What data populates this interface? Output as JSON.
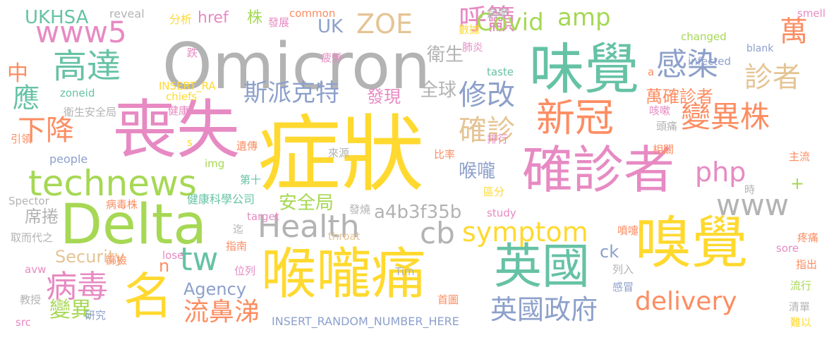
{
  "words": [
    {
      "text": "症狀",
      "color": "#ffd92f"
    },
    {
      "text": "Omicron",
      "color": "#b3b3b3"
    },
    {
      "text": "喪失",
      "color": "#e78ac3"
    },
    {
      "text": "Delta",
      "color": "#a6d854"
    },
    {
      "text": "味覺",
      "color": "#66c2a5"
    },
    {
      "text": "確診者",
      "color": "#e78ac3"
    },
    {
      "text": "嗅覺",
      "color": "#ffd92f"
    },
    {
      "text": "喉嚨痛",
      "color": "#ffd92f"
    },
    {
      "text": "名",
      "color": "#ffd92f"
    },
    {
      "text": "英國",
      "color": "#66c2a5"
    },
    {
      "text": "新冠",
      "color": "#fc8d62"
    },
    {
      "text": "technews",
      "color": "#a6d854"
    },
    {
      "text": "www5",
      "color": "#e78ac3"
    },
    {
      "text": "高達",
      "color": "#66c2a5"
    },
    {
      "text": "感染",
      "color": "#8da0cb"
    },
    {
      "text": "變異株",
      "color": "#fc8d62"
    },
    {
      "text": "Health",
      "color": "#b3b3b3"
    },
    {
      "text": "www",
      "color": "#b3b3b3"
    },
    {
      "text": "cb",
      "color": "#b3b3b3"
    },
    {
      "text": "symptom",
      "color": "#ffd92f"
    },
    {
      "text": "delivery",
      "color": "#fc8d62"
    },
    {
      "text": "英國政府",
      "color": "#8da0cb"
    },
    {
      "text": "病毒",
      "color": "#e78ac3"
    },
    {
      "text": "ZOE",
      "color": "#e5c494"
    },
    {
      "text": "amp",
      "color": "#a6d854"
    },
    {
      "text": "呼籲",
      "color": "#e78ac3"
    },
    {
      "text": "Covid",
      "color": "#a6d854"
    },
    {
      "text": "萬",
      "color": "#fc8d62"
    },
    {
      "text": "診者",
      "color": "#e5c494"
    },
    {
      "text": "php",
      "color": "#e78ac3"
    },
    {
      "text": "tw",
      "color": "#66c2a5"
    },
    {
      "text": "下降",
      "color": "#fc8d62"
    },
    {
      "text": "修改",
      "color": "#8da0cb"
    },
    {
      "text": "斯派克特",
      "color": "#8da0cb"
    },
    {
      "text": "確診",
      "color": "#e5c494"
    },
    {
      "text": "應",
      "color": "#66c2a5"
    },
    {
      "text": "流鼻涕",
      "color": "#fc8d62"
    },
    {
      "text": "變異",
      "color": "#a6d854"
    },
    {
      "text": "Agency",
      "color": "#8da0cb"
    },
    {
      "text": "a4b3f35b",
      "color": "#b3b3b3"
    },
    {
      "text": "安全局",
      "color": "#a6d854"
    },
    {
      "text": "Security",
      "color": "#e5c494"
    },
    {
      "text": "UKHSA",
      "color": "#66c2a5"
    },
    {
      "text": "中",
      "color": "#fc8d62"
    },
    {
      "text": "全球",
      "color": "#b3b3b3"
    },
    {
      "text": "衛生",
      "color": "#b3b3b3"
    },
    {
      "text": "萬確診者",
      "color": "#fc8d62"
    },
    {
      "text": "UK",
      "color": "#8da0cb"
    },
    {
      "text": "href",
      "color": "#e78ac3"
    },
    {
      "text": "株",
      "color": "#a6d854"
    },
    {
      "text": "發現",
      "color": "#e78ac3"
    },
    {
      "text": "喉嚨",
      "color": "#8da0cb"
    },
    {
      "text": "席捲",
      "color": "#b3b3b3"
    },
    {
      "text": "ck",
      "color": "#8da0cb"
    },
    {
      "text": "n",
      "color": "#fc8d62"
    },
    {
      "text": "people",
      "color": "#8da0cb"
    },
    {
      "text": "INSERT_RANDOM_NUMBER_HERE",
      "color": "#8da0cb"
    },
    {
      "text": "健康科學公司",
      "color": "#66c2a5"
    },
    {
      "text": "reveal",
      "color": "#b3b3b3"
    },
    {
      "text": "分析",
      "color": "#ffd92f"
    },
    {
      "text": "發展",
      "color": "#e78ac3"
    },
    {
      "text": "common",
      "color": "#fc8d62"
    },
    {
      "text": "病學",
      "color": "#b3b3b3"
    },
    {
      "text": "數據",
      "color": "#ffd92f"
    },
    {
      "text": "肺炎",
      "color": "#e78ac3"
    },
    {
      "text": "疲勞",
      "color": "#e78ac3"
    },
    {
      "text": "跌",
      "color": "#e78ac3"
    },
    {
      "text": "INSERT_RA",
      "color": "#ffd92f"
    },
    {
      "text": "chiefs",
      "color": "#ffd92f"
    },
    {
      "text": "zoneid",
      "color": "#66c2a5"
    },
    {
      "text": "衛生安全局",
      "color": "#b3b3b3"
    },
    {
      "text": "健康",
      "color": "#e78ac3"
    },
    {
      "text": "引領",
      "color": "#fc8d62"
    },
    {
      "text": "s",
      "color": "#ffd92f"
    },
    {
      "text": "遺傳",
      "color": "#fc8d62"
    },
    {
      "text": "img",
      "color": "#a6d854"
    },
    {
      "text": "來源",
      "color": "#b3b3b3"
    },
    {
      "text": "比率",
      "color": "#fc8d62"
    },
    {
      "text": "排行",
      "color": "#e78ac3"
    },
    {
      "text": "區分",
      "color": "#ffd92f"
    },
    {
      "text": "第十",
      "color": "#66c2a5"
    },
    {
      "text": "發燒",
      "color": "#b3b3b3"
    },
    {
      "text": "病毒株",
      "color": "#fc8d62"
    },
    {
      "text": "Spector",
      "color": "#b3b3b3"
    },
    {
      "text": "target",
      "color": "#e78ac3"
    },
    {
      "text": "study",
      "color": "#e78ac3"
    },
    {
      "text": "throat",
      "color": "#e5c494"
    },
    {
      "text": "迄",
      "color": "#b3b3b3"
    },
    {
      "text": "取而代之",
      "color": "#b3b3b3"
    },
    {
      "text": "指南",
      "color": "#fc8d62"
    },
    {
      "text": "篩檢",
      "color": "#fc8d62"
    },
    {
      "text": "lose",
      "color": "#e78ac3"
    },
    {
      "text": "avw",
      "color": "#e78ac3"
    },
    {
      "text": "位列",
      "color": "#e78ac3"
    },
    {
      "text": "Tim",
      "color": "#b3b3b3"
    },
    {
      "text": "首圖",
      "color": "#fc8d62"
    },
    {
      "text": "教授",
      "color": "#b3b3b3"
    },
    {
      "text": "研究",
      "color": "#8da0cb"
    },
    {
      "text": "src",
      "color": "#e78ac3"
    },
    {
      "text": "blank",
      "color": "#8da0cb"
    },
    {
      "text": "a",
      "color": "#fc8d62"
    },
    {
      "text": "changed",
      "color": "#a6d854"
    },
    {
      "text": "infected",
      "color": "#8da0cb"
    },
    {
      "text": "taste",
      "color": "#66c2a5"
    },
    {
      "text": "smell",
      "color": "#e78ac3"
    },
    {
      "text": "咳嗽",
      "color": "#e78ac3"
    },
    {
      "text": "頭痛",
      "color": "#b3b3b3"
    },
    {
      "text": "相關",
      "color": "#fc8d62"
    },
    {
      "text": "主流",
      "color": "#fc8d62"
    },
    {
      "text": "時",
      "color": "#b3b3b3"
    },
    {
      "text": "+",
      "color": "#a6d854"
    },
    {
      "text": "疼痛",
      "color": "#fc8d62"
    },
    {
      "text": "噴嚏",
      "color": "#fc8d62"
    },
    {
      "text": "sore",
      "color": "#e78ac3"
    },
    {
      "text": "指出",
      "color": "#fc8d62"
    },
    {
      "text": "列入",
      "color": "#b3b3b3"
    },
    {
      "text": "流行",
      "color": "#a6d854"
    },
    {
      "text": "感冒",
      "color": "#8da0cb"
    },
    {
      "text": "清單",
      "color": "#b3b3b3"
    },
    {
      "text": "難以",
      "color": "#ffd92f"
    }
  ]
}
